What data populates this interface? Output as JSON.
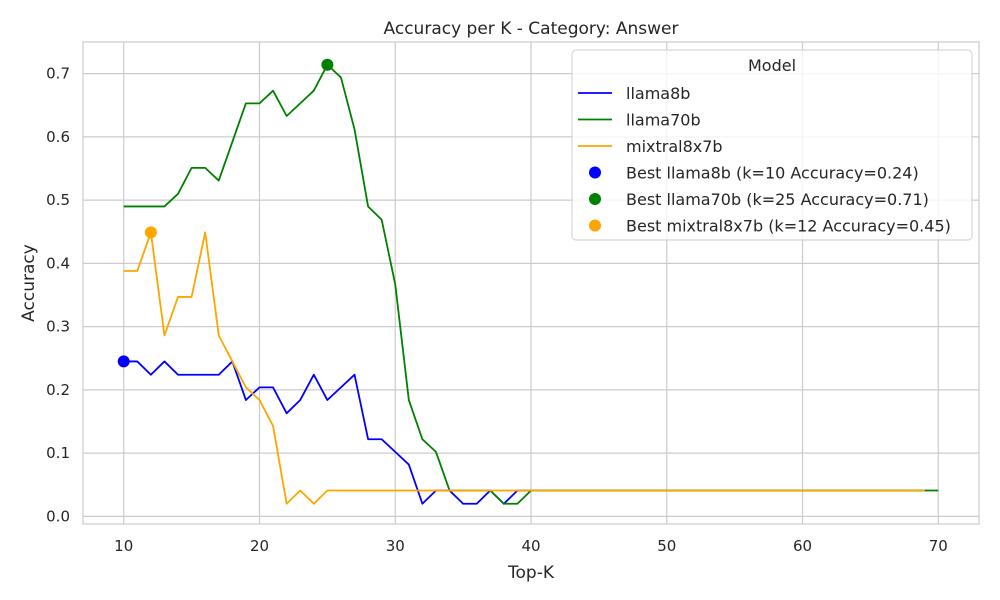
{
  "chart_data": {
    "type": "line",
    "title": "Accuracy per K - Category: Answer",
    "xlabel": "Top-K",
    "ylabel": "Accuracy",
    "xlim": [
      7,
      73
    ],
    "ylim": [
      -0.012,
      0.75
    ],
    "xticks": [
      10,
      20,
      30,
      40,
      50,
      60,
      70
    ],
    "yticks": [
      0.0,
      0.1,
      0.2,
      0.3,
      0.4,
      0.5,
      0.6,
      0.7
    ],
    "grid": true,
    "legend_title": "Model",
    "legend_position": "top-right",
    "series": [
      {
        "name": "llama8b",
        "color": "#0000ff",
        "x": [
          10,
          11,
          12,
          13,
          14,
          15,
          16,
          17,
          18,
          19,
          20,
          21,
          22,
          23,
          24,
          25,
          26,
          27,
          28,
          29,
          30,
          31,
          32,
          33,
          34,
          35,
          36,
          37,
          38,
          39,
          40,
          41,
          42,
          43,
          44,
          45,
          46,
          47,
          48,
          49,
          50,
          51,
          52,
          53,
          54,
          55,
          56,
          57,
          58,
          59,
          60,
          61,
          62,
          63,
          64,
          65,
          66,
          67,
          68,
          69
        ],
        "y": [
          0.245,
          0.245,
          0.224,
          0.245,
          0.224,
          0.224,
          0.224,
          0.224,
          0.245,
          0.184,
          0.204,
          0.204,
          0.163,
          0.184,
          0.224,
          0.184,
          0.204,
          0.224,
          0.122,
          0.122,
          0.102,
          0.082,
          0.02,
          0.041,
          0.041,
          0.02,
          0.02,
          0.041,
          0.02,
          0.041,
          0.041,
          0.041,
          0.041,
          0.041,
          0.041,
          0.041,
          0.041,
          0.041,
          0.041,
          0.041,
          0.041,
          0.041,
          0.041,
          0.041,
          0.041,
          0.041,
          0.041,
          0.041,
          0.041,
          0.041,
          0.041,
          0.041,
          0.041,
          0.041,
          0.041,
          0.041,
          0.041,
          0.041,
          0.041,
          0.041
        ]
      },
      {
        "name": "llama70b",
        "color": "#008000",
        "x": [
          10,
          11,
          12,
          13,
          14,
          15,
          16,
          17,
          18,
          19,
          20,
          21,
          22,
          23,
          24,
          25,
          26,
          27,
          28,
          29,
          30,
          31,
          32,
          33,
          34,
          35,
          36,
          37,
          38,
          39,
          40,
          41,
          42,
          43,
          44,
          45,
          46,
          47,
          48,
          49,
          50,
          51,
          52,
          53,
          54,
          55,
          56,
          57,
          58,
          59,
          60,
          61,
          62,
          63,
          64,
          65,
          66,
          67,
          68,
          69,
          70
        ],
        "y": [
          0.49,
          0.49,
          0.49,
          0.49,
          0.51,
          0.551,
          0.551,
          0.531,
          0.592,
          0.653,
          0.653,
          0.673,
          0.633,
          0.653,
          0.673,
          0.714,
          0.694,
          0.612,
          0.49,
          0.469,
          0.367,
          0.184,
          0.122,
          0.102,
          0.041,
          0.041,
          0.041,
          0.041,
          0.02,
          0.02,
          0.041,
          0.041,
          0.041,
          0.041,
          0.041,
          0.041,
          0.041,
          0.041,
          0.041,
          0.041,
          0.041,
          0.041,
          0.041,
          0.041,
          0.041,
          0.041,
          0.041,
          0.041,
          0.041,
          0.041,
          0.041,
          0.041,
          0.041,
          0.041,
          0.041,
          0.041,
          0.041,
          0.041,
          0.041,
          0.041,
          0.041
        ]
      },
      {
        "name": "mixtral8x7b",
        "color": "#ffa500",
        "x": [
          10,
          11,
          12,
          13,
          14,
          15,
          16,
          17,
          18,
          19,
          20,
          21,
          22,
          23,
          24,
          25,
          26,
          27,
          28,
          29,
          30,
          31,
          32,
          33,
          34,
          35,
          36,
          37,
          38,
          39,
          40,
          41,
          42,
          43,
          44,
          45,
          46,
          47,
          48,
          49,
          50,
          51,
          52,
          53,
          54,
          55,
          56,
          57,
          58,
          59,
          60,
          61,
          62,
          63,
          64,
          65,
          66,
          67,
          68,
          69
        ],
        "y": [
          0.388,
          0.388,
          0.449,
          0.286,
          0.347,
          0.347,
          0.449,
          0.286,
          0.245,
          0.204,
          0.184,
          0.143,
          0.02,
          0.041,
          0.02,
          0.041,
          0.041,
          0.041,
          0.041,
          0.041,
          0.041,
          0.041,
          0.041,
          0.041,
          0.041,
          0.041,
          0.041,
          0.041,
          0.041,
          0.041,
          0.041,
          0.041,
          0.041,
          0.041,
          0.041,
          0.041,
          0.041,
          0.041,
          0.041,
          0.041,
          0.041,
          0.041,
          0.041,
          0.041,
          0.041,
          0.041,
          0.041,
          0.041,
          0.041,
          0.041,
          0.041,
          0.041,
          0.041,
          0.041,
          0.041,
          0.041,
          0.041,
          0.041,
          0.041,
          0.041
        ]
      }
    ],
    "best_points": [
      {
        "label": "Best llama8b (k=10 Accuracy=0.24)",
        "color": "#0000ff",
        "x": 10,
        "y": 0.245
      },
      {
        "label": "Best llama70b (k=25 Accuracy=0.71)",
        "color": "#008000",
        "x": 25,
        "y": 0.714
      },
      {
        "label": "Best mixtral8x7b (k=12 Accuracy=0.45)",
        "color": "#ffa500",
        "x": 12,
        "y": 0.449
      }
    ]
  }
}
